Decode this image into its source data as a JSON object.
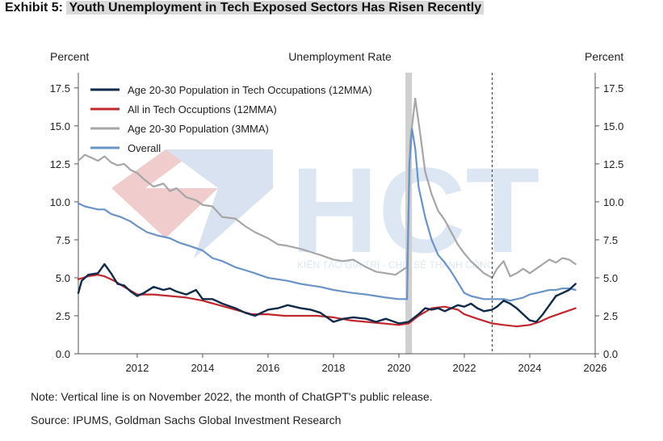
{
  "header": {
    "exhibit": "Exhibit 5:",
    "title": "Youth Unemployment in Tech Exposed Sectors Has Risen Recently"
  },
  "footer": {
    "note": "Note: Vertical line is on November 2022, the month of ChatGPT's public release.",
    "source": "Source: IPUMS, Goldman Sachs Global Investment Research"
  },
  "watermark": {
    "logo_text": "HCT",
    "tagline": "KIẾN TẠO GIÁ TRỊ - CHIA SẺ THÀNH CÔNG"
  },
  "chart_data": {
    "type": "line",
    "title": "Unemployment Rate",
    "ylabel_left": "Percent",
    "ylabel_right": "Percent",
    "xlim": [
      2010.2,
      2026
    ],
    "ylim": [
      0,
      18.5
    ],
    "xticks": [
      2012,
      2014,
      2016,
      2018,
      2020,
      2022,
      2024,
      2026
    ],
    "yticks": [
      0.0,
      2.5,
      5.0,
      7.5,
      10.0,
      12.5,
      15.0,
      17.5
    ],
    "ytick_labels": [
      "0.0",
      "2.5",
      "5.0",
      "7.5",
      "10.0",
      "12.5",
      "15.0",
      "17.5"
    ],
    "legend_position": "top-left",
    "grid": false,
    "shaded_period": [
      2020.2,
      2020.4
    ],
    "shaded_color": "#d0d0d0",
    "vline": 2022.85,
    "series": [
      {
        "name": "Age 20-30 Population in Tech Occupations (12MMA)",
        "color": "#0f2a4a",
        "width": 2.4,
        "points": [
          [
            2010.2,
            4.0
          ],
          [
            2010.3,
            4.8
          ],
          [
            2010.5,
            5.2
          ],
          [
            2010.8,
            5.3
          ],
          [
            2011.0,
            5.9
          ],
          [
            2011.2,
            5.3
          ],
          [
            2011.4,
            4.6
          ],
          [
            2011.6,
            4.5
          ],
          [
            2011.8,
            4.1
          ],
          [
            2012.0,
            3.8
          ],
          [
            2012.2,
            4.0
          ],
          [
            2012.5,
            4.4
          ],
          [
            2012.8,
            4.2
          ],
          [
            2013.0,
            4.3
          ],
          [
            2013.2,
            4.1
          ],
          [
            2013.5,
            3.9
          ],
          [
            2013.8,
            4.2
          ],
          [
            2014.0,
            3.6
          ],
          [
            2014.3,
            3.6
          ],
          [
            2014.6,
            3.3
          ],
          [
            2015.0,
            3.0
          ],
          [
            2015.3,
            2.7
          ],
          [
            2015.6,
            2.5
          ],
          [
            2016.0,
            2.9
          ],
          [
            2016.3,
            3.0
          ],
          [
            2016.6,
            3.2
          ],
          [
            2017.0,
            3.0
          ],
          [
            2017.3,
            2.9
          ],
          [
            2017.6,
            2.7
          ],
          [
            2018.0,
            2.1
          ],
          [
            2018.3,
            2.3
          ],
          [
            2018.6,
            2.4
          ],
          [
            2019.0,
            2.3
          ],
          [
            2019.3,
            2.1
          ],
          [
            2019.6,
            2.3
          ],
          [
            2020.0,
            2.0
          ],
          [
            2020.3,
            2.1
          ],
          [
            2020.6,
            2.6
          ],
          [
            2020.8,
            3.0
          ],
          [
            2021.0,
            2.9
          ],
          [
            2021.2,
            3.0
          ],
          [
            2021.4,
            2.8
          ],
          [
            2021.6,
            3.0
          ],
          [
            2021.8,
            3.2
          ],
          [
            2022.0,
            3.1
          ],
          [
            2022.2,
            3.3
          ],
          [
            2022.4,
            3.0
          ],
          [
            2022.6,
            2.8
          ],
          [
            2022.85,
            2.9
          ],
          [
            2023.0,
            3.1
          ],
          [
            2023.2,
            3.5
          ],
          [
            2023.4,
            3.3
          ],
          [
            2023.6,
            3.0
          ],
          [
            2023.8,
            2.6
          ],
          [
            2024.0,
            2.2
          ],
          [
            2024.2,
            2.1
          ],
          [
            2024.4,
            2.6
          ],
          [
            2024.6,
            3.2
          ],
          [
            2024.8,
            3.8
          ],
          [
            2025.0,
            4.0
          ],
          [
            2025.2,
            4.2
          ],
          [
            2025.4,
            4.6
          ]
        ]
      },
      {
        "name": "All in Tech Occuptions (12MMA)",
        "color": "#c0282d",
        "width": 2.2,
        "points": [
          [
            2010.2,
            4.9
          ],
          [
            2010.5,
            5.1
          ],
          [
            2010.8,
            5.2
          ],
          [
            2011.0,
            5.1
          ],
          [
            2011.3,
            4.8
          ],
          [
            2011.6,
            4.4
          ],
          [
            2012.0,
            3.9
          ],
          [
            2012.5,
            3.9
          ],
          [
            2013.0,
            3.8
          ],
          [
            2013.5,
            3.7
          ],
          [
            2014.0,
            3.5
          ],
          [
            2014.5,
            3.2
          ],
          [
            2015.0,
            2.9
          ],
          [
            2015.5,
            2.6
          ],
          [
            2016.0,
            2.6
          ],
          [
            2016.5,
            2.5
          ],
          [
            2017.0,
            2.5
          ],
          [
            2017.5,
            2.5
          ],
          [
            2018.0,
            2.4
          ],
          [
            2018.5,
            2.2
          ],
          [
            2019.0,
            2.1
          ],
          [
            2019.5,
            2.0
          ],
          [
            2020.0,
            1.9
          ],
          [
            2020.3,
            2.0
          ],
          [
            2020.6,
            2.5
          ],
          [
            2021.0,
            3.0
          ],
          [
            2021.4,
            3.1
          ],
          [
            2021.8,
            2.9
          ],
          [
            2022.0,
            2.6
          ],
          [
            2022.4,
            2.3
          ],
          [
            2022.85,
            2.0
          ],
          [
            2023.2,
            1.9
          ],
          [
            2023.6,
            1.8
          ],
          [
            2024.0,
            1.9
          ],
          [
            2024.3,
            2.1
          ],
          [
            2024.6,
            2.4
          ],
          [
            2025.0,
            2.7
          ],
          [
            2025.4,
            3.0
          ]
        ]
      },
      {
        "name": "Age 20-30 Population (3MMA)",
        "color": "#a6a6a6",
        "width": 2.2,
        "points": [
          [
            2010.2,
            12.7
          ],
          [
            2010.4,
            13.1
          ],
          [
            2010.6,
            12.9
          ],
          [
            2010.8,
            12.7
          ],
          [
            2011.0,
            13.0
          ],
          [
            2011.2,
            12.6
          ],
          [
            2011.4,
            12.4
          ],
          [
            2011.6,
            12.5
          ],
          [
            2011.8,
            12.1
          ],
          [
            2012.0,
            11.9
          ],
          [
            2012.2,
            11.5
          ],
          [
            2012.5,
            11.0
          ],
          [
            2012.8,
            11.2
          ],
          [
            2013.0,
            10.7
          ],
          [
            2013.2,
            10.9
          ],
          [
            2013.5,
            10.3
          ],
          [
            2013.8,
            10.1
          ],
          [
            2014.0,
            9.8
          ],
          [
            2014.3,
            9.7
          ],
          [
            2014.6,
            9.0
          ],
          [
            2015.0,
            8.9
          ],
          [
            2015.3,
            8.4
          ],
          [
            2015.6,
            8.0
          ],
          [
            2016.0,
            7.6
          ],
          [
            2016.3,
            7.2
          ],
          [
            2016.6,
            7.1
          ],
          [
            2017.0,
            6.9
          ],
          [
            2017.3,
            6.7
          ],
          [
            2017.6,
            6.5
          ],
          [
            2018.0,
            6.2
          ],
          [
            2018.3,
            6.1
          ],
          [
            2018.6,
            6.2
          ],
          [
            2019.0,
            5.7
          ],
          [
            2019.3,
            5.4
          ],
          [
            2019.6,
            5.3
          ],
          [
            2019.9,
            5.2
          ],
          [
            2020.1,
            5.5
          ],
          [
            2020.25,
            5.7
          ],
          [
            2020.35,
            14.0
          ],
          [
            2020.5,
            16.8
          ],
          [
            2020.65,
            14.5
          ],
          [
            2020.8,
            12.0
          ],
          [
            2021.0,
            10.5
          ],
          [
            2021.2,
            9.4
          ],
          [
            2021.4,
            8.8
          ],
          [
            2021.6,
            8.0
          ],
          [
            2021.8,
            7.2
          ],
          [
            2022.0,
            6.6
          ],
          [
            2022.2,
            6.1
          ],
          [
            2022.4,
            5.7
          ],
          [
            2022.6,
            5.3
          ],
          [
            2022.85,
            5.0
          ],
          [
            2023.0,
            5.6
          ],
          [
            2023.2,
            6.1
          ],
          [
            2023.4,
            5.1
          ],
          [
            2023.6,
            5.3
          ],
          [
            2023.8,
            5.6
          ],
          [
            2024.0,
            5.3
          ],
          [
            2024.2,
            5.6
          ],
          [
            2024.4,
            5.9
          ],
          [
            2024.6,
            6.2
          ],
          [
            2024.8,
            6.0
          ],
          [
            2025.0,
            6.3
          ],
          [
            2025.2,
            6.2
          ],
          [
            2025.4,
            5.9
          ]
        ]
      },
      {
        "name": "Overall",
        "color": "#6a93c7",
        "width": 2.2,
        "points": [
          [
            2010.2,
            9.9
          ],
          [
            2010.4,
            9.7
          ],
          [
            2010.6,
            9.6
          ],
          [
            2010.8,
            9.5
          ],
          [
            2011.0,
            9.5
          ],
          [
            2011.2,
            9.2
          ],
          [
            2011.5,
            9.0
          ],
          [
            2011.8,
            8.7
          ],
          [
            2012.0,
            8.4
          ],
          [
            2012.3,
            8.0
          ],
          [
            2012.6,
            7.8
          ],
          [
            2013.0,
            7.6
          ],
          [
            2013.3,
            7.3
          ],
          [
            2013.6,
            7.1
          ],
          [
            2014.0,
            6.8
          ],
          [
            2014.3,
            6.3
          ],
          [
            2014.6,
            6.1
          ],
          [
            2015.0,
            5.7
          ],
          [
            2015.3,
            5.5
          ],
          [
            2015.6,
            5.3
          ],
          [
            2016.0,
            5.0
          ],
          [
            2016.3,
            4.9
          ],
          [
            2016.6,
            4.8
          ],
          [
            2017.0,
            4.6
          ],
          [
            2017.3,
            4.5
          ],
          [
            2017.6,
            4.4
          ],
          [
            2018.0,
            4.2
          ],
          [
            2018.3,
            4.1
          ],
          [
            2018.6,
            4.0
          ],
          [
            2019.0,
            3.9
          ],
          [
            2019.3,
            3.8
          ],
          [
            2019.6,
            3.7
          ],
          [
            2020.0,
            3.6
          ],
          [
            2020.25,
            3.6
          ],
          [
            2020.32,
            12.5
          ],
          [
            2020.4,
            14.8
          ],
          [
            2020.5,
            13.5
          ],
          [
            2020.6,
            11.0
          ],
          [
            2020.8,
            9.0
          ],
          [
            2021.0,
            7.5
          ],
          [
            2021.2,
            6.5
          ],
          [
            2021.4,
            6.0
          ],
          [
            2021.6,
            5.4
          ],
          [
            2021.8,
            4.7
          ],
          [
            2022.0,
            4.0
          ],
          [
            2022.2,
            3.8
          ],
          [
            2022.4,
            3.7
          ],
          [
            2022.6,
            3.6
          ],
          [
            2022.85,
            3.6
          ],
          [
            2023.0,
            3.6
          ],
          [
            2023.2,
            3.6
          ],
          [
            2023.4,
            3.5
          ],
          [
            2023.6,
            3.6
          ],
          [
            2023.8,
            3.7
          ],
          [
            2024.0,
            3.9
          ],
          [
            2024.2,
            4.0
          ],
          [
            2024.4,
            4.1
          ],
          [
            2024.6,
            4.2
          ],
          [
            2024.8,
            4.2
          ],
          [
            2025.0,
            4.3
          ],
          [
            2025.2,
            4.3
          ],
          [
            2025.4,
            4.2
          ]
        ]
      }
    ]
  }
}
